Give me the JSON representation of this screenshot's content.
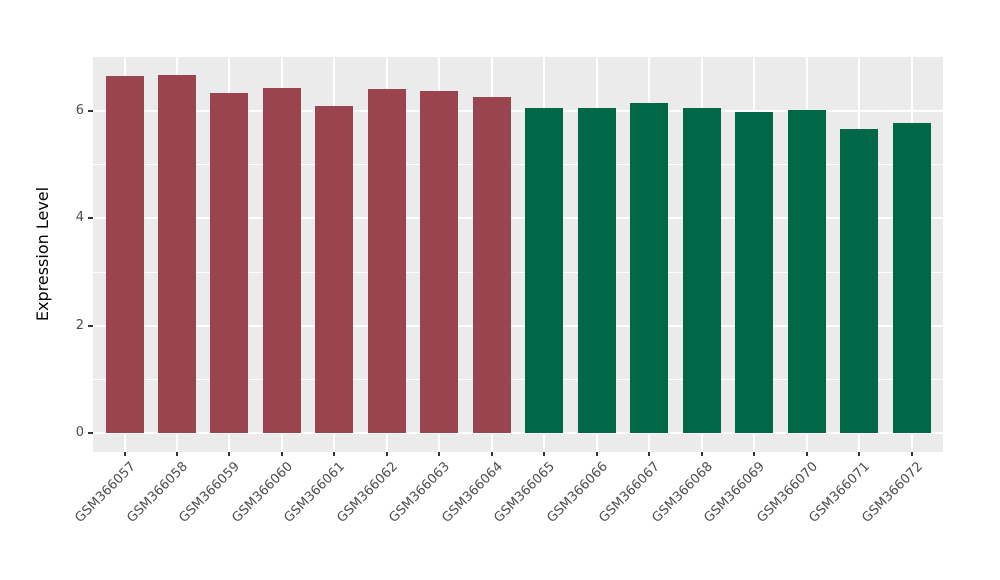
{
  "chart_data": {
    "type": "bar",
    "title": "",
    "xlabel": "",
    "ylabel": "Expression Level",
    "categories": [
      "GSM366057",
      "GSM366058",
      "GSM366059",
      "GSM366060",
      "GSM366061",
      "GSM366062",
      "GSM366063",
      "GSM366064",
      "GSM366065",
      "GSM366066",
      "GSM366067",
      "GSM366068",
      "GSM366069",
      "GSM366070",
      "GSM366071",
      "GSM366072"
    ],
    "values": [
      6.65,
      6.67,
      6.33,
      6.42,
      6.08,
      6.41,
      6.36,
      6.26,
      6.05,
      6.04,
      6.15,
      6.04,
      5.98,
      6.01,
      5.66,
      5.77
    ],
    "bar_colors": [
      "#9A4450",
      "#9A4450",
      "#9A4450",
      "#9A4450",
      "#9A4450",
      "#9A4450",
      "#9A4450",
      "#9A4450",
      "#006747",
      "#006747",
      "#006747",
      "#006747",
      "#006747",
      "#006747",
      "#006747",
      "#006747"
    ],
    "group_colors": {
      "left_group": "#9A4450",
      "right_group": "#006747"
    },
    "y_major_ticks": [
      0,
      2,
      4,
      6
    ],
    "y_minor_ticks": [
      1,
      3,
      5,
      7
    ],
    "ylim": [
      0,
      7
    ],
    "grid": "on",
    "legend": "none",
    "panel_background": "#EBEBEB",
    "grid_color": "#FFFFFF",
    "tick_text_color": "#4D4D4D",
    "x_label_rotation_deg": 45
  }
}
